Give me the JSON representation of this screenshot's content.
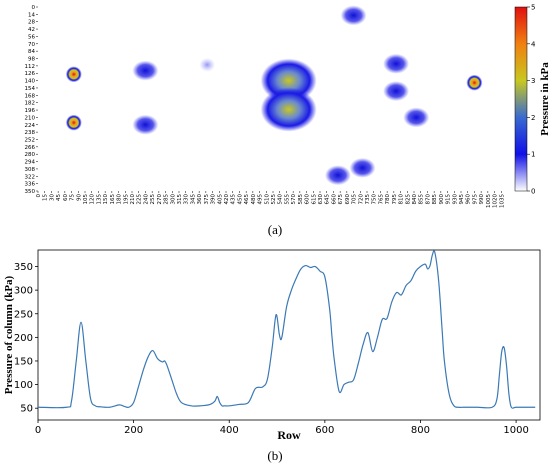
{
  "panels": {
    "a_label": "(a)",
    "b_label": "(b)"
  },
  "chart_data": [
    {
      "type": "heatmap",
      "title": "",
      "xlabel": "",
      "ylabel": "",
      "x_ticks": [
        "0",
        "15",
        "30",
        "45",
        "60",
        "75",
        "90",
        "105",
        "120",
        "135",
        "150",
        "165",
        "180",
        "195",
        "210",
        "225",
        "240",
        "255",
        "270",
        "285",
        "300",
        "315",
        "330",
        "345",
        "360",
        "375",
        "390",
        "405",
        "420",
        "435",
        "450",
        "465",
        "480",
        "495",
        "510",
        "525",
        "540",
        "555",
        "570",
        "585",
        "600",
        "615",
        "630",
        "645",
        "660",
        "675",
        "690",
        "705",
        "720",
        "735",
        "750",
        "765",
        "780",
        "795",
        "810",
        "825",
        "840",
        "855",
        "870",
        "885",
        "900",
        "915",
        "930",
        "945",
        "960",
        "975",
        "990",
        "1005",
        "1020",
        "1035"
      ],
      "y_ticks": [
        "0",
        "14",
        "28",
        "42",
        "56",
        "70",
        "84",
        "98",
        "112",
        "126",
        "140",
        "154",
        "168",
        "182",
        "196",
        "210",
        "224",
        "238",
        "252",
        "266",
        "280",
        "294",
        "308",
        "322",
        "336",
        "350"
      ],
      "xlim": [
        0,
        1050
      ],
      "ylim": [
        0,
        350
      ],
      "colorbar": {
        "label": "Pressure in kPa",
        "ticks": [
          "0",
          "1",
          "2",
          "3",
          "4",
          "5"
        ],
        "range": [
          0,
          5
        ],
        "colormap": [
          "#ffffff",
          "#1010e6",
          "#3a6ad0",
          "#c8c820",
          "#f08010",
          "#e01010"
        ]
      },
      "blobs": [
        {
          "x": 80,
          "y": 128,
          "pressure": 4.2
        },
        {
          "x": 80,
          "y": 220,
          "pressure": 3.8
        },
        {
          "x": 240,
          "y": 121,
          "pressure": 1.8
        },
        {
          "x": 240,
          "y": 224,
          "pressure": 1.8
        },
        {
          "x": 378,
          "y": 110,
          "pressure": 1.2
        },
        {
          "x": 560,
          "y": 140,
          "pressure": 2.6
        },
        {
          "x": 560,
          "y": 195,
          "pressure": 2.4
        },
        {
          "x": 670,
          "y": 320,
          "pressure": 1.5
        },
        {
          "x": 705,
          "y": 16,
          "pressure": 2.0
        },
        {
          "x": 725,
          "y": 306,
          "pressure": 1.8
        },
        {
          "x": 800,
          "y": 108,
          "pressure": 2.0
        },
        {
          "x": 800,
          "y": 160,
          "pressure": 1.8
        },
        {
          "x": 845,
          "y": 210,
          "pressure": 1.6
        },
        {
          "x": 975,
          "y": 144,
          "pressure": 4.1
        }
      ]
    },
    {
      "type": "line",
      "title": "",
      "xlabel": "Row",
      "ylabel": "Pressure of column (kPa)",
      "xlim": [
        0,
        1050
      ],
      "ylim": [
        25,
        385
      ],
      "x_ticks": [
        0,
        200,
        400,
        600,
        800,
        1000
      ],
      "y_ticks": [
        50,
        100,
        150,
        200,
        250,
        300,
        350
      ],
      "color": "#3b79b5",
      "series": [
        {
          "x": [
            0,
            60,
            70,
            80,
            90,
            100,
            110,
            120,
            130,
            150,
            170,
            180,
            190,
            200,
            210,
            220,
            230,
            240,
            250,
            260,
            265,
            270,
            280,
            290,
            300,
            320,
            340,
            360,
            370,
            375,
            380,
            385,
            390,
            400,
            420,
            440,
            455,
            470,
            480,
            490,
            498,
            505,
            510,
            520,
            530,
            540,
            550,
            560,
            570,
            580,
            590,
            600,
            610,
            615,
            620,
            630,
            640,
            650,
            660,
            670,
            680,
            690,
            700,
            710,
            720,
            730,
            740,
            750,
            760,
            770,
            780,
            790,
            800,
            810,
            815,
            820,
            825,
            830,
            838,
            845,
            850,
            860,
            870,
            880,
            890,
            900,
            910,
            920,
            950,
            960,
            965,
            970,
            975,
            980,
            985,
            990,
            1000,
            1020,
            1040
          ],
          "y": [
            52,
            52,
            65,
            150,
            232,
            150,
            70,
            55,
            53,
            52,
            57,
            54,
            52,
            62,
            95,
            130,
            158,
            172,
            155,
            148,
            150,
            140,
            110,
            80,
            62,
            55,
            55,
            58,
            65,
            75,
            62,
            55,
            55,
            55,
            58,
            62,
            92,
            95,
            112,
            180,
            248,
            205,
            200,
            265,
            300,
            325,
            345,
            352,
            348,
            350,
            340,
            328,
            260,
            200,
            150,
            85,
            100,
            105,
            110,
            145,
            185,
            210,
            170,
            200,
            238,
            240,
            275,
            295,
            290,
            310,
            320,
            340,
            350,
            355,
            345,
            352,
            375,
            380,
            320,
            220,
            150,
            80,
            55,
            52,
            52,
            52,
            52,
            52,
            52,
            70,
            120,
            170,
            178,
            140,
            80,
            52,
            52,
            52,
            52
          ]
        }
      ]
    }
  ]
}
